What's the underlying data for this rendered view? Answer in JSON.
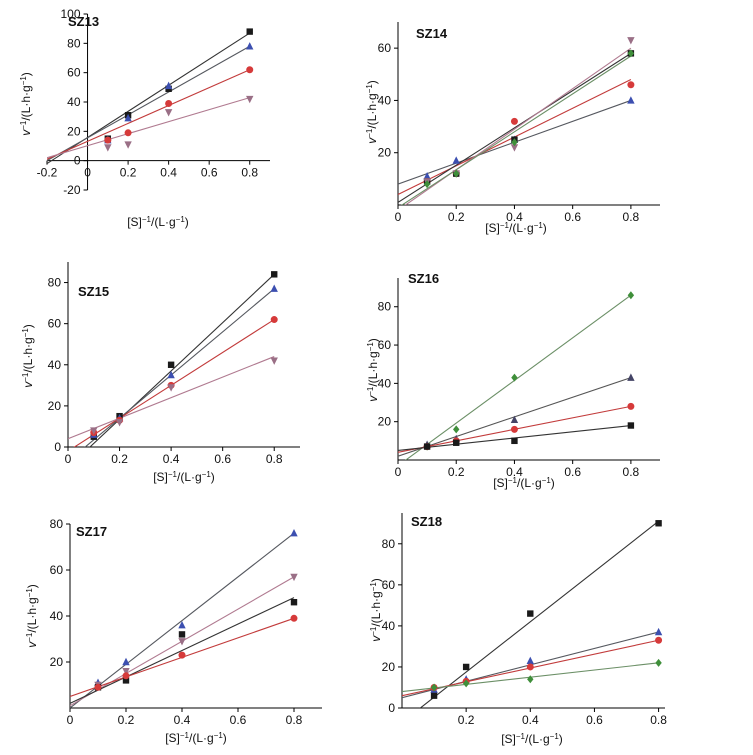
{
  "figure": {
    "ylabel_main": "v",
    "ylabel_sup": "−1",
    "ylabel_rest": "/(L·h·g",
    "ylabel_sup2": "−1",
    "ylabel_close": ")",
    "xlabel_main": "[S]",
    "xlabel_sup": "−1",
    "xlabel_rest": "/(L·g",
    "xlabel_sup2": "−1",
    "xlabel_close": ")"
  },
  "colors": {
    "black": "#1a1a1a",
    "red": "#d63a3a",
    "blue": "#3c4fb0",
    "pink": "#9a6f86",
    "green": "#3f8f3a",
    "grayline": "#555555"
  },
  "chart_data": [
    {
      "type": "scatter",
      "title": "SZ13",
      "xlim": [
        -0.2,
        0.9
      ],
      "ylim": [
        -20,
        100
      ],
      "xticks": [
        -0.2,
        0,
        0.2,
        0.4,
        0.6,
        0.8
      ],
      "xtick_labels": [
        "-0.2",
        "0",
        "0.2",
        "0.4",
        "0.6",
        "0.8"
      ],
      "yticks": [
        -20,
        0,
        20,
        40,
        60,
        80,
        100
      ],
      "ytick_labels": [
        "-20",
        "0",
        "20",
        "40",
        "60",
        "80",
        "100"
      ],
      "x_axis_at": 0,
      "y_axis_at": 0,
      "series": [
        {
          "marker": "square",
          "color": "black",
          "points": [
            [
              0.1,
              15
            ],
            [
              0.2,
              31
            ],
            [
              0.4,
              49
            ],
            [
              0.8,
              88
            ]
          ],
          "line": [
            [
              -0.2,
              -2
            ],
            [
              0.8,
              87
            ]
          ]
        },
        {
          "marker": "triangle-up",
          "color": "blue",
          "points": [
            [
              0.1,
              14
            ],
            [
              0.2,
              29
            ],
            [
              0.4,
              51
            ],
            [
              0.8,
              78
            ]
          ],
          "line": [
            [
              -0.2,
              0
            ],
            [
              0.8,
              78
            ]
          ]
        },
        {
          "marker": "circle",
          "color": "red",
          "points": [
            [
              0.1,
              14
            ],
            [
              0.2,
              19
            ],
            [
              0.4,
              39
            ],
            [
              0.8,
              62
            ]
          ],
          "line": [
            [
              -0.2,
              1
            ],
            [
              0.8,
              62
            ]
          ]
        },
        {
          "marker": "triangle-down",
          "color": "pink",
          "points": [
            [
              0.1,
              9
            ],
            [
              0.2,
              11
            ],
            [
              0.4,
              33
            ],
            [
              0.8,
              42
            ]
          ],
          "line": [
            [
              -0.2,
              2
            ],
            [
              0.8,
              43
            ]
          ]
        }
      ]
    },
    {
      "type": "scatter",
      "title": "SZ14",
      "xlim": [
        0,
        0.9
      ],
      "ylim": [
        0,
        70
      ],
      "xticks": [
        0,
        0.2,
        0.4,
        0.6,
        0.8
      ],
      "xtick_labels": [
        "0",
        "0.2",
        "0.4",
        "0.6",
        "0.8"
      ],
      "yticks": [
        20,
        40,
        60
      ],
      "ytick_labels": [
        "20",
        "40",
        "60"
      ],
      "x_axis_at": 0,
      "y_axis_at": 0,
      "series": [
        {
          "marker": "triangle-up",
          "color": "blue",
          "points": [
            [
              0.1,
              11
            ],
            [
              0.2,
              17
            ],
            [
              0.4,
              25
            ],
            [
              0.8,
              40
            ]
          ],
          "line": [
            [
              0,
              8
            ],
            [
              0.8,
              40
            ]
          ]
        },
        {
          "marker": "circle",
          "color": "red",
          "points": [
            [
              0.1,
              9
            ],
            [
              0.2,
              12
            ],
            [
              0.4,
              32
            ],
            [
              0.8,
              46
            ]
          ],
          "line": [
            [
              0,
              4
            ],
            [
              0.8,
              48
            ]
          ]
        },
        {
          "marker": "square",
          "color": "black",
          "points": [
            [
              0.1,
              9
            ],
            [
              0.2,
              12
            ],
            [
              0.4,
              25
            ],
            [
              0.8,
              58
            ]
          ],
          "line": [
            [
              0,
              1
            ],
            [
              0.8,
              58
            ]
          ]
        },
        {
          "marker": "triangle-down",
          "color": "pink",
          "points": [
            [
              0.1,
              9
            ],
            [
              0.2,
              12
            ],
            [
              0.4,
              22
            ],
            [
              0.8,
              63
            ]
          ],
          "line": [
            [
              0,
              -2
            ],
            [
              0.8,
              60
            ]
          ]
        },
        {
          "marker": "diamond",
          "color": "green",
          "points": [
            [
              0.1,
              8
            ],
            [
              0.2,
              12
            ],
            [
              0.4,
              24
            ],
            [
              0.8,
              58
            ]
          ],
          "line": [
            [
              0,
              -1
            ],
            [
              0.8,
              57
            ]
          ]
        }
      ]
    },
    {
      "type": "scatter",
      "title": "SZ15",
      "xlim": [
        0,
        0.9
      ],
      "ylim": [
        0,
        90
      ],
      "xticks": [
        0,
        0.2,
        0.4,
        0.6,
        0.8
      ],
      "xtick_labels": [
        "0",
        "0.2",
        "0.4",
        "0.6",
        "0.8"
      ],
      "yticks": [
        0,
        20,
        40,
        60,
        80
      ],
      "ytick_labels": [
        "0",
        "20",
        "40",
        "60",
        "80"
      ],
      "x_axis_at": 0,
      "y_axis_at": 0,
      "series": [
        {
          "marker": "square",
          "color": "black",
          "points": [
            [
              0.1,
              5
            ],
            [
              0.2,
              15
            ],
            [
              0.4,
              40
            ],
            [
              0.8,
              84
            ]
          ],
          "line": [
            [
              0,
              -10
            ],
            [
              0.8,
              84
            ]
          ]
        },
        {
          "marker": "triangle-up",
          "color": "blue",
          "points": [
            [
              0.1,
              6
            ],
            [
              0.2,
              14
            ],
            [
              0.4,
              35
            ],
            [
              0.8,
              77
            ]
          ],
          "line": [
            [
              0,
              -7
            ],
            [
              0.8,
              77
            ]
          ]
        },
        {
          "marker": "circle",
          "color": "red",
          "points": [
            [
              0.1,
              7
            ],
            [
              0.2,
              13
            ],
            [
              0.4,
              30
            ],
            [
              0.8,
              62
            ]
          ],
          "line": [
            [
              0,
              -2
            ],
            [
              0.8,
              62
            ]
          ]
        },
        {
          "marker": "triangle-down",
          "color": "pink",
          "points": [
            [
              0.1,
              8
            ],
            [
              0.2,
              12
            ],
            [
              0.4,
              29
            ],
            [
              0.8,
              42
            ]
          ],
          "line": [
            [
              0,
              4
            ],
            [
              0.8,
              44
            ]
          ]
        }
      ]
    },
    {
      "type": "scatter",
      "title": "SZ16",
      "xlim": [
        0,
        0.9
      ],
      "ylim": [
        0,
        95
      ],
      "xticks": [
        0,
        0.2,
        0.4,
        0.6,
        0.8
      ],
      "xtick_labels": [
        "0",
        "0.2",
        "0.4",
        "0.6",
        "0.8"
      ],
      "yticks": [
        20,
        40,
        60,
        80
      ],
      "ytick_labels": [
        "20",
        "40",
        "60",
        "80"
      ],
      "x_axis_at": 0,
      "y_axis_at": 0,
      "series": [
        {
          "marker": "diamond",
          "color": "green",
          "points": [
            [
              0.1,
              7
            ],
            [
              0.2,
              16
            ],
            [
              0.4,
              43
            ],
            [
              0.8,
              86
            ]
          ],
          "line": [
            [
              0,
              -3
            ],
            [
              0.8,
              86
            ]
          ]
        },
        {
          "marker": "triangle-up",
          "color": "gray",
          "points": [
            [
              0.1,
              8
            ],
            [
              0.2,
              11
            ],
            [
              0.4,
              21
            ],
            [
              0.8,
              43
            ]
          ],
          "line": [
            [
              0,
              2
            ],
            [
              0.8,
              43
            ]
          ]
        },
        {
          "marker": "circle",
          "color": "red",
          "points": [
            [
              0.1,
              7
            ],
            [
              0.2,
              10
            ],
            [
              0.4,
              16
            ],
            [
              0.8,
              28
            ]
          ],
          "line": [
            [
              0,
              4
            ],
            [
              0.8,
              28
            ]
          ]
        },
        {
          "marker": "square",
          "color": "black",
          "points": [
            [
              0.1,
              7
            ],
            [
              0.2,
              9
            ],
            [
              0.4,
              10
            ],
            [
              0.8,
              18
            ]
          ],
          "line": [
            [
              0,
              5
            ],
            [
              0.8,
              18
            ]
          ]
        }
      ]
    },
    {
      "type": "scatter",
      "title": "SZ17",
      "xlim": [
        0,
        0.9
      ],
      "ylim": [
        0,
        80
      ],
      "xticks": [
        0,
        0.2,
        0.4,
        0.6,
        0.8
      ],
      "xtick_labels": [
        "0",
        "0.2",
        "0.4",
        "0.6",
        "0.8"
      ],
      "yticks": [
        20,
        40,
        60,
        80
      ],
      "ytick_labels": [
        "20",
        "40",
        "60",
        "80"
      ],
      "x_axis_at": 0,
      "y_axis_at": 0,
      "series": [
        {
          "marker": "triangle-up",
          "color": "blue",
          "points": [
            [
              0.1,
              11
            ],
            [
              0.2,
              20
            ],
            [
              0.4,
              36
            ],
            [
              0.8,
              76
            ]
          ],
          "line": [
            [
              0,
              0
            ],
            [
              0.8,
              76
            ]
          ]
        },
        {
          "marker": "triangle-down",
          "color": "pink",
          "points": [
            [
              0.1,
              10
            ],
            [
              0.2,
              16
            ],
            [
              0.4,
              29
            ],
            [
              0.8,
              57
            ]
          ],
          "line": [
            [
              0,
              1
            ],
            [
              0.8,
              57
            ]
          ]
        },
        {
          "marker": "square",
          "color": "black",
          "points": [
            [
              0.1,
              9
            ],
            [
              0.2,
              12
            ],
            [
              0.4,
              32
            ],
            [
              0.8,
              46
            ]
          ],
          "line": [
            [
              0,
              2
            ],
            [
              0.8,
              48
            ]
          ]
        },
        {
          "marker": "circle",
          "color": "red",
          "points": [
            [
              0.1,
              9
            ],
            [
              0.2,
              14
            ],
            [
              0.4,
              23
            ],
            [
              0.8,
              39
            ]
          ],
          "line": [
            [
              0,
              5
            ],
            [
              0.8,
              39
            ]
          ]
        }
      ]
    },
    {
      "type": "scatter",
      "title": "SZ18",
      "xlim": [
        0,
        0.82
      ],
      "ylim": [
        0,
        95
      ],
      "xticks": [
        0.2,
        0.4,
        0.6,
        0.8
      ],
      "xtick_labels": [
        "0.2",
        "0.4",
        "0.6",
        "0.8"
      ],
      "yticks": [
        0,
        20,
        40,
        60,
        80
      ],
      "ytick_labels": [
        "0",
        "20",
        "40",
        "60",
        "80"
      ],
      "x_axis_at": 0,
      "y_axis_at": 0,
      "series": [
        {
          "marker": "square",
          "color": "black",
          "points": [
            [
              0.1,
              6
            ],
            [
              0.2,
              20
            ],
            [
              0.4,
              46
            ],
            [
              0.8,
              90
            ]
          ],
          "line": [
            [
              0,
              -7
            ],
            [
              0.8,
              91
            ]
          ]
        },
        {
          "marker": "triangle-up",
          "color": "blue",
          "points": [
            [
              0.1,
              9
            ],
            [
              0.2,
              14
            ],
            [
              0.4,
              23
            ],
            [
              0.8,
              37
            ]
          ],
          "line": [
            [
              0,
              5
            ],
            [
              0.8,
              37
            ]
          ]
        },
        {
          "marker": "circle",
          "color": "red",
          "points": [
            [
              0.1,
              10
            ],
            [
              0.2,
              13
            ],
            [
              0.4,
              20
            ],
            [
              0.8,
              33
            ]
          ],
          "line": [
            [
              0,
              6
            ],
            [
              0.8,
              33
            ]
          ]
        },
        {
          "marker": "diamond",
          "color": "green",
          "points": [
            [
              0.1,
              10
            ],
            [
              0.2,
              12
            ],
            [
              0.4,
              14
            ],
            [
              0.8,
              22
            ]
          ],
          "line": [
            [
              0,
              8
            ],
            [
              0.8,
              22
            ]
          ]
        }
      ]
    }
  ]
}
